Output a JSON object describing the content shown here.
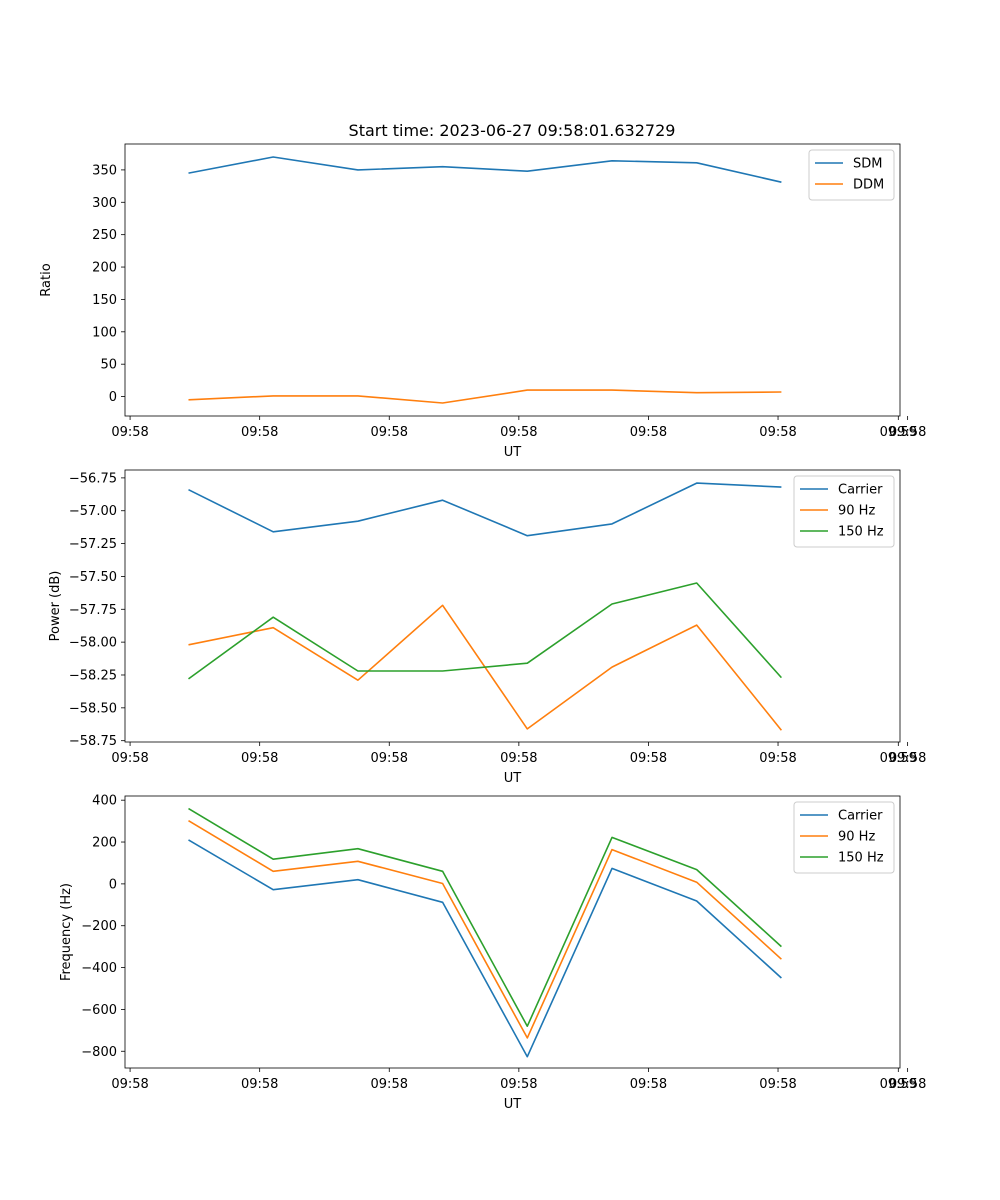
{
  "figure": {
    "title": "Start time: 2023-06-27 09:58:01.632729"
  },
  "colors": {
    "blue": "#1f77b4",
    "orange": "#ff7f0e",
    "green": "#2ca02c"
  },
  "chart_data": [
    {
      "type": "line",
      "title": "Start time: 2023-06-27 09:58:01.632729",
      "xlabel": "UT",
      "ylabel": "Ratio",
      "xlim": [
        -0.75,
        8.4
      ],
      "ylim": [
        -30,
        390
      ],
      "xtick_labels": [
        "09:58",
        "09:58",
        "09:58",
        "09:58",
        "09:58",
        "09:58",
        "09:58"
      ],
      "xtick_last_label": "09:59",
      "yticks": [
        0,
        50,
        100,
        150,
        200,
        250,
        300,
        350
      ],
      "ytick_labels": [
        "0",
        "50",
        "100",
        "150",
        "200",
        "250",
        "300",
        "350"
      ],
      "legend": "top-right",
      "x": [
        0,
        1,
        2,
        3,
        4,
        5,
        6,
        7
      ],
      "series": [
        {
          "name": "SDM",
          "color": "#1f77b4",
          "values": [
            345,
            370,
            350,
            355,
            348,
            364,
            361,
            331
          ]
        },
        {
          "name": "DDM",
          "color": "#ff7f0e",
          "values": [
            -5,
            1,
            1,
            -10,
            10,
            10,
            6,
            7
          ]
        }
      ]
    },
    {
      "type": "line",
      "title": "",
      "xlabel": "UT",
      "ylabel": "Power (dB)",
      "xlim": [
        -0.75,
        8.4
      ],
      "ylim": [
        -58.76,
        -56.69
      ],
      "xtick_labels": [
        "09:58",
        "09:58",
        "09:58",
        "09:58",
        "09:58",
        "09:58",
        "09:58"
      ],
      "xtick_last_label": "09:59",
      "yticks": [
        -58.75,
        -58.5,
        -58.25,
        -58.0,
        -57.75,
        -57.5,
        -57.25,
        -57.0,
        -56.75
      ],
      "ytick_labels": [
        "−58.75",
        "−58.50",
        "−58.25",
        "−58.00",
        "−57.75",
        "−57.50",
        "−57.25",
        "−57.00",
        "−56.75"
      ],
      "legend": "top-right",
      "x": [
        0,
        1,
        2,
        3,
        4,
        5,
        6,
        7
      ],
      "series": [
        {
          "name": "Carrier",
          "color": "#1f77b4",
          "values": [
            -56.84,
            -57.16,
            -57.08,
            -56.92,
            -57.19,
            -57.1,
            -56.79,
            -56.82
          ]
        },
        {
          "name": "90 Hz",
          "color": "#ff7f0e",
          "values": [
            -58.02,
            -57.89,
            -58.29,
            -57.72,
            -58.66,
            -58.19,
            -57.87,
            -58.67
          ]
        },
        {
          "name": "150 Hz",
          "color": "#2ca02c",
          "values": [
            -58.28,
            -57.81,
            -58.22,
            -58.22,
            -58.16,
            -57.71,
            -57.55,
            -58.27
          ]
        }
      ]
    },
    {
      "type": "line",
      "title": "",
      "xlabel": "UT",
      "ylabel": "Frequency (Hz)",
      "xlim": [
        -0.75,
        8.4
      ],
      "ylim": [
        -880,
        420
      ],
      "xtick_labels": [
        "09:58",
        "09:58",
        "09:58",
        "09:58",
        "09:58",
        "09:58",
        "09:58"
      ],
      "xtick_last_label": "09:59",
      "yticks": [
        -800,
        -600,
        -400,
        -200,
        0,
        200,
        400
      ],
      "ytick_labels": [
        "−800",
        "−600",
        "−400",
        "−200",
        "0",
        "200",
        "400"
      ],
      "legend": "top-right",
      "x": [
        0,
        1,
        2,
        3,
        4,
        5,
        6,
        7
      ],
      "series": [
        {
          "name": "Carrier",
          "color": "#1f77b4",
          "values": [
            210,
            -28,
            20,
            -88,
            -826,
            74,
            -82,
            -450
          ]
        },
        {
          "name": "90 Hz",
          "color": "#ff7f0e",
          "values": [
            302,
            60,
            108,
            2,
            -736,
            164,
            8,
            -360
          ]
        },
        {
          "name": "150 Hz",
          "color": "#2ca02c",
          "values": [
            360,
            118,
            168,
            60,
            -680,
            222,
            68,
            -300
          ]
        }
      ]
    }
  ]
}
